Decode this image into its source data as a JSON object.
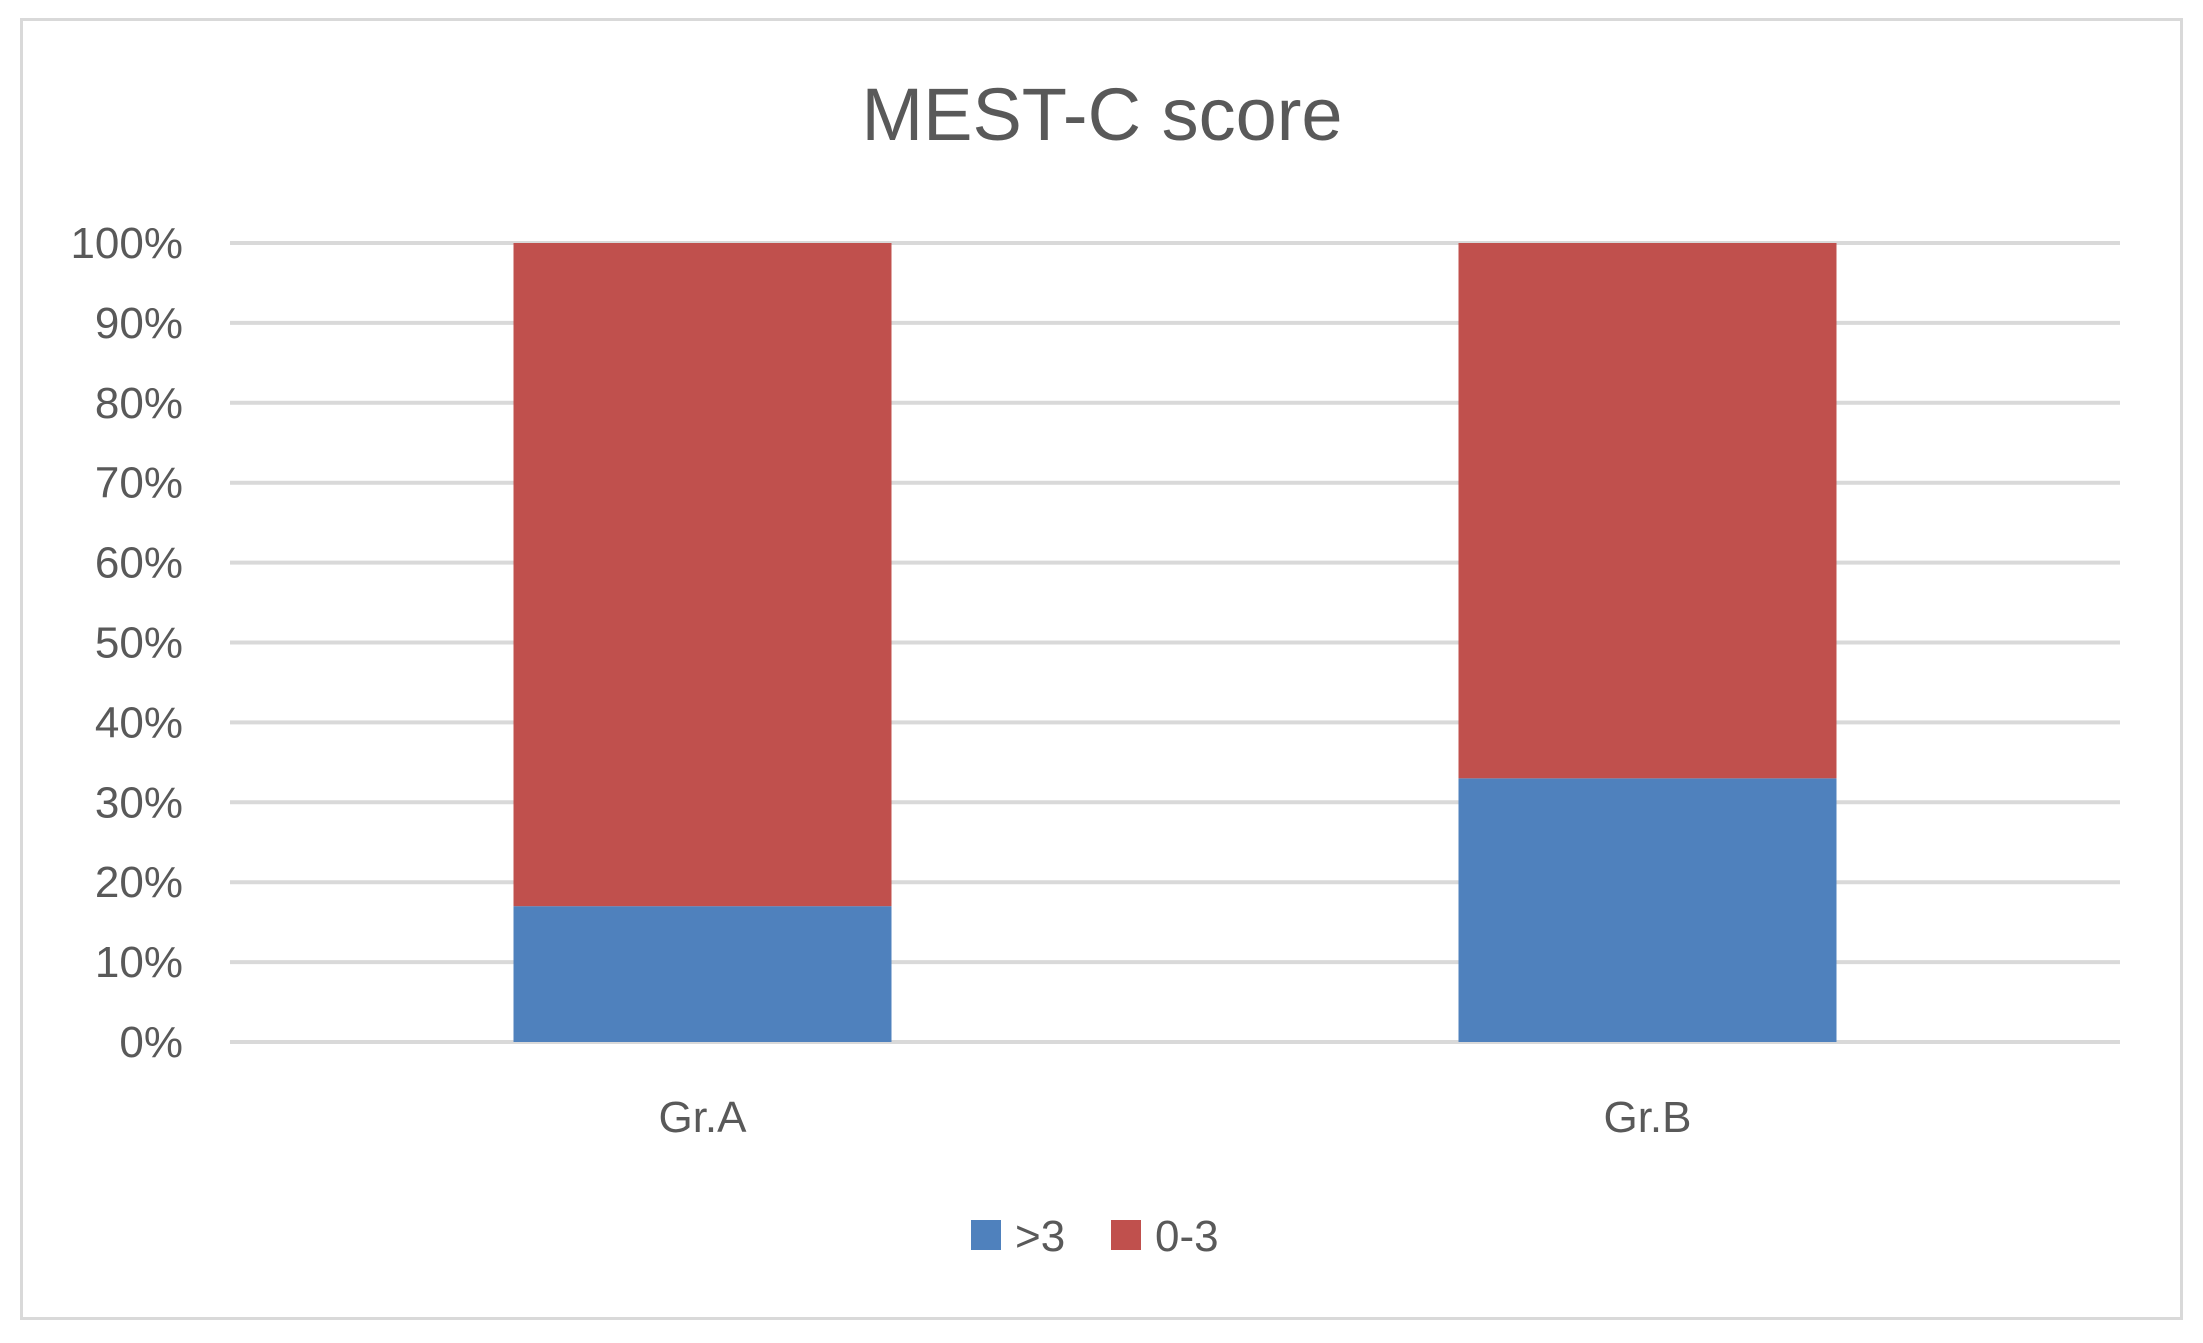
{
  "chart_data": {
    "type": "bar",
    "stacked": true,
    "title": "MEST-C score",
    "xlabel": "",
    "ylabel": "",
    "categories": [
      "Gr.A",
      "Gr.B"
    ],
    "series": [
      {
        "name": ">3",
        "values": [
          17,
          33
        ],
        "color": "#4f81bd"
      },
      {
        "name": "0-3",
        "values": [
          83,
          67
        ],
        "color": "#c0504d"
      }
    ],
    "ylim": [
      0,
      100
    ],
    "yticks": [
      "0%",
      "10%",
      "20%",
      "30%",
      "40%",
      "50%",
      "60%",
      "70%",
      "80%",
      "90%",
      "100%"
    ],
    "grid": true,
    "legend": "bottom",
    "colors": {
      "grid": "#d9d9d9",
      "text": "#595959",
      "border": "#d9d9d9"
    }
  }
}
